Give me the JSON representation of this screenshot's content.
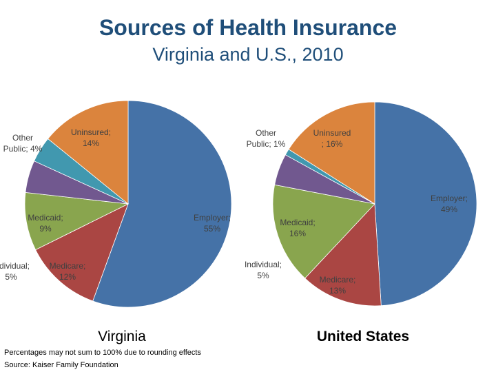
{
  "title": "Sources of Health Insurance",
  "subtitle": "Virginia and U.S., 2010",
  "colors": {
    "employer": "#4572a7",
    "medicare": "#aa4643",
    "medicaid": "#89a54e",
    "individual": "#71588f",
    "other_public": "#4198af",
    "uninsured": "#db843d"
  },
  "chart_data": [
    {
      "type": "pie",
      "title": "Virginia",
      "categories": [
        "Employer",
        "Medicare",
        "Medicaid",
        "Individual",
        "Other Public",
        "Uninsured"
      ],
      "values": [
        55,
        12,
        9,
        5,
        4,
        14
      ],
      "labels": [
        [
          "Employer;",
          "55%"
        ],
        [
          "Medicare;",
          "12%"
        ],
        [
          "Medicaid;",
          "9%"
        ],
        [
          "Individual;",
          "5%"
        ],
        [
          "Other",
          "Public; 4%"
        ],
        [
          "Uninsured;",
          "14%"
        ]
      ]
    },
    {
      "type": "pie",
      "title": "United States",
      "categories": [
        "Employer",
        "Medicare",
        "Medicaid",
        "Individual",
        "Other Public",
        "Uninsured"
      ],
      "values": [
        49,
        13,
        16,
        5,
        1,
        16
      ],
      "labels": [
        [
          "Employer;",
          "49%"
        ],
        [
          "Medicare;",
          "13%"
        ],
        [
          "Medicaid;",
          "16%"
        ],
        [
          "Individual;",
          "5%"
        ],
        [
          "Other",
          "Public; 1%"
        ],
        [
          "Uninsured",
          "; 16%"
        ]
      ]
    }
  ],
  "footnote": "Percentages may not sum to 100% due to rounding effects",
  "source": "Source: Kaiser Family Foundation"
}
